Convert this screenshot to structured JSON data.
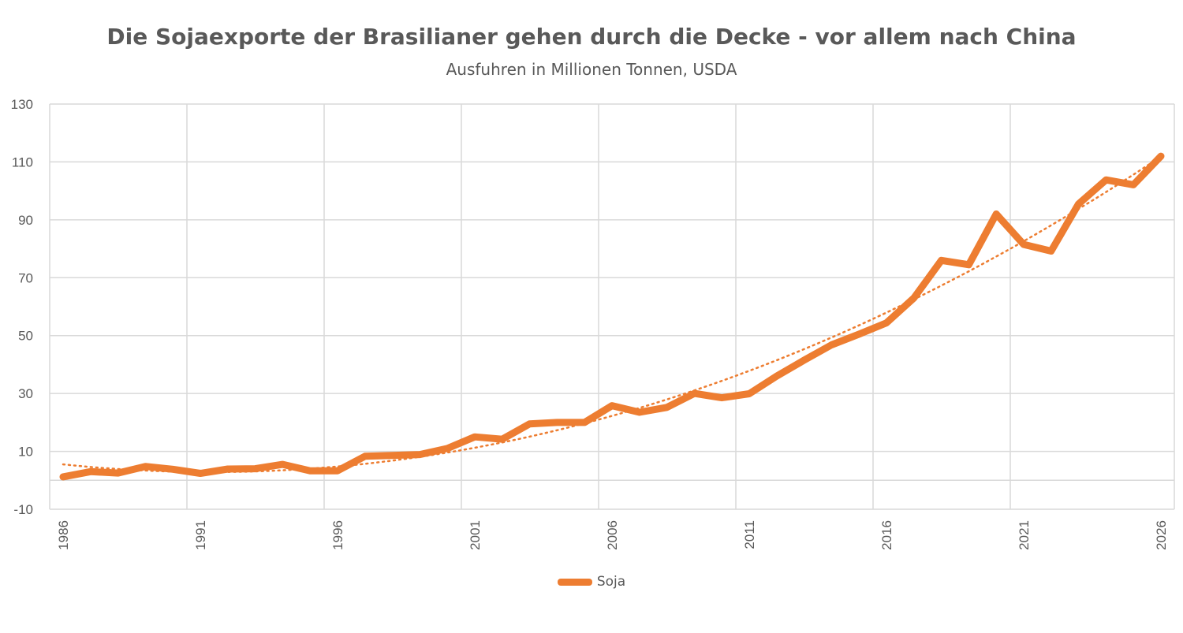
{
  "chart_data": {
    "type": "line",
    "title": "Die Sojaexporte der Brasilianer gehen durch die Decke - vor allem nach China",
    "subtitle": "Ausfuhren in Millionen Tonnen, USDA",
    "xlabel": "",
    "ylabel": "",
    "ylim": [
      -10,
      130
    ],
    "yticks": [
      -10,
      10,
      30,
      50,
      70,
      90,
      110,
      130
    ],
    "xlim": [
      1986,
      2026
    ],
    "xticks": [
      "1986",
      "1991",
      "1996",
      "2001",
      "2006",
      "2011",
      "2016",
      "2021",
      "2026"
    ],
    "grid": true,
    "legend_position": "bottom",
    "trendline": {
      "type": "polynomial",
      "style": "dotted"
    },
    "colors": {
      "series": "#ED7D31",
      "trend": "#ED7D31",
      "grid": "#D9D9D9"
    },
    "series": [
      {
        "name": "Soja",
        "x": [
          1986,
          1987,
          1988,
          1989,
          1990,
          1991,
          1992,
          1993,
          1994,
          1995,
          1996,
          1997,
          1998,
          1999,
          2000,
          2001,
          2002,
          2003,
          2004,
          2005,
          2006,
          2007,
          2008,
          2009,
          2010,
          2011,
          2012,
          2013,
          2014,
          2015,
          2016,
          2017,
          2018,
          2019,
          2020,
          2021,
          2022,
          2023,
          2024,
          2025,
          2026
        ],
        "values": [
          1.2,
          3.0,
          2.5,
          4.8,
          3.8,
          2.4,
          3.9,
          4.0,
          5.5,
          3.3,
          3.3,
          8.3,
          8.6,
          8.9,
          11.0,
          15.0,
          14.2,
          19.5,
          20.0,
          20.0,
          25.8,
          23.5,
          25.2,
          30.0,
          28.5,
          29.9,
          36.0,
          41.5,
          46.8,
          50.5,
          54.4,
          63.0,
          76.0,
          74.5,
          92.0,
          81.5,
          79.2,
          95.5,
          103.8,
          102.1,
          112.0
        ]
      }
    ]
  }
}
